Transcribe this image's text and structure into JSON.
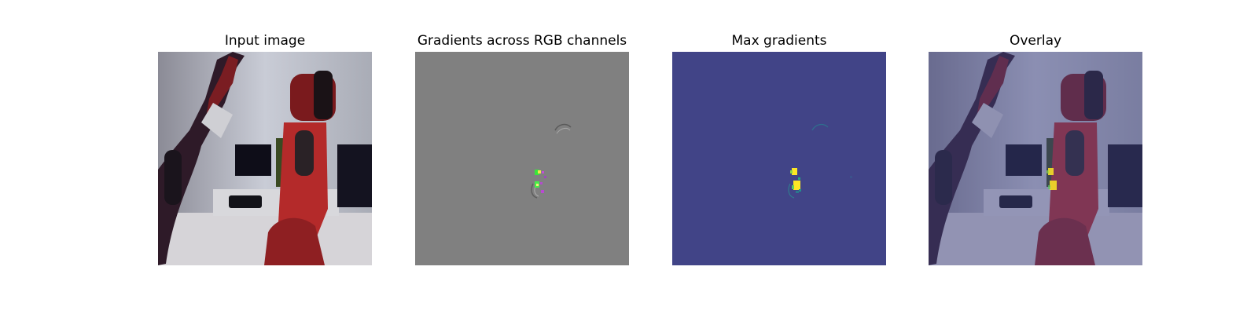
{
  "figure": {
    "panels": [
      {
        "title": "Input image"
      },
      {
        "title": "Gradients across RGB channels"
      },
      {
        "title": "Max gradients"
      },
      {
        "title": "Overlay"
      }
    ]
  },
  "colors": {
    "gradient_background": "#808080",
    "max_gradient_background": "#414487",
    "max_gradient_highlight": "#fde725",
    "robot_red": "#b42a2a"
  }
}
